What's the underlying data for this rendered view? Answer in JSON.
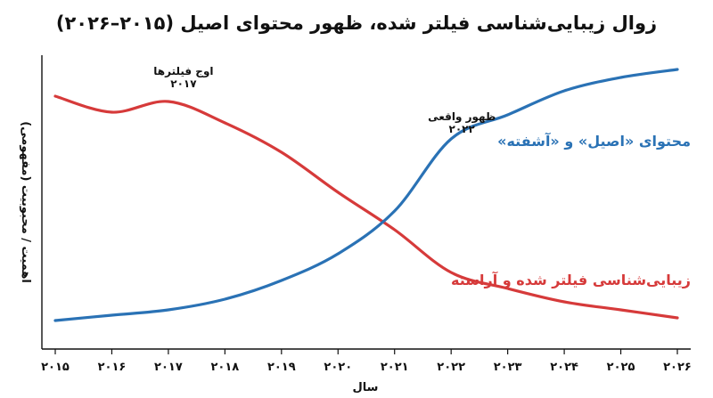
{
  "chart_data": {
    "type": "line",
    "title": "زوال زیبایی‌شناسی فیلتر شده، ظهور محتوای اصیل (۲۰۱۵–۲۰۲۶)",
    "xlabel": "سال",
    "ylabel": "اهمیت / محبوبیت (مفهومی)",
    "x": [
      2015,
      2016,
      2017,
      2018,
      2019,
      2020,
      2021,
      2022,
      2023,
      2024,
      2025,
      2026
    ],
    "x_tick_labels": [
      "۲۰۱۵",
      "۲۰۱۶",
      "۲۰۱۷",
      "۲۰۱۸",
      "۲۰۱۹",
      "۲۰۲۰",
      "۲۰۲۱",
      "۲۰۲۲",
      "۲۰۲۳",
      "۲۰۲۴",
      "۲۰۲۵",
      "۲۰۲۶"
    ],
    "ylim": [
      0,
      100
    ],
    "y_tick_labels": false,
    "grid": false,
    "series": [
      {
        "name": "زیبایی‌شناسی فیلتر شده و آراسته",
        "color": "#d63a3a",
        "values": [
          88,
          82,
          86,
          78,
          67,
          52,
          38,
          22,
          16,
          11,
          8,
          5
        ]
      },
      {
        "name": "محتوای «اصیل» و «آشفته»",
        "color": "#2a72b5",
        "values": [
          4,
          6,
          8,
          12,
          19,
          29,
          45,
          72,
          81,
          90,
          95,
          98
        ]
      }
    ],
    "annotations": [
      {
        "text": [
          "اوج فیلترها",
          "۲۰۱۷"
        ],
        "x": 2017
      },
      {
        "text": [
          "ظهور واقعی",
          "۲۰۲۲"
        ],
        "x": 2022
      }
    ]
  }
}
